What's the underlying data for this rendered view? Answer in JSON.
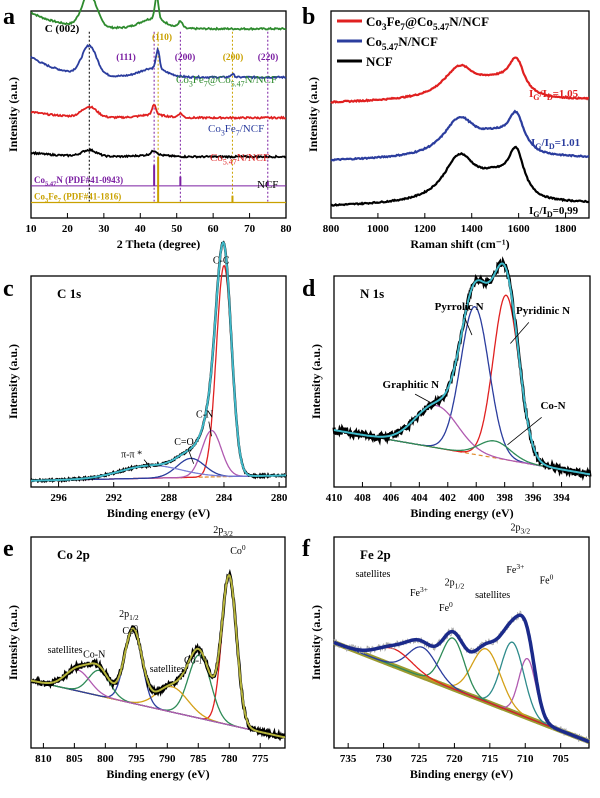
{
  "chart_data": [
    {
      "panel": "a",
      "type": "line",
      "xlabel": "2 Theta (degree)",
      "ylabel": "Intensity (a.u.)",
      "xlim": [
        10,
        80
      ],
      "xticks": [
        10,
        20,
        30,
        40,
        50,
        60,
        70,
        80
      ],
      "peak_labels": [
        {
          "text": "C (002)",
          "x": 26.0,
          "color": "#000000"
        },
        {
          "text": "(111)",
          "x": 43.8,
          "color": "#7b1fa2"
        },
        {
          "text": "(110)",
          "x": 44.9,
          "color": "#c9a100"
        },
        {
          "text": "(200)",
          "x": 51.0,
          "color": "#7b1fa2"
        },
        {
          "text": "(200)",
          "x": 65.3,
          "color": "#c9a100"
        },
        {
          "text": "(220)",
          "x": 75.0,
          "color": "#7b1fa2"
        }
      ],
      "series": [
        {
          "name": "Co3Fe7@Co5.47N/NCF",
          "color": "#2e8b2e",
          "level": 0.93
        },
        {
          "name": "Co3Fe7/NCF",
          "color": "#2b3d9e",
          "level": 0.7
        },
        {
          "name": "Co5.47N/NCF",
          "color": "#e02020",
          "level": 0.49
        },
        {
          "name": "NCF",
          "color": "#000000",
          "level": 0.3
        }
      ],
      "series_labels": [
        {
          "parts": [
            "Co",
            "3",
            "Fe",
            "7",
            "@Co",
            "5.47",
            "N/NCF"
          ],
          "color": "#2e8b2e"
        },
        {
          "parts": [
            "Co",
            "3",
            "Fe",
            "7",
            "/NCF"
          ],
          "color": "#2b3d9e"
        },
        {
          "parts": [
            "Co",
            "5.47",
            "N/NCF"
          ],
          "color": "#e02020"
        },
        {
          "parts": [
            "NCF"
          ],
          "color": "#000000"
        }
      ],
      "references": [
        {
          "label_parts": [
            "Co",
            "5.47",
            "N (PDF#41-0943)"
          ],
          "color": "#7b1fa2",
          "peaks": [
            {
              "x": 43.8,
              "h": 1.0
            },
            {
              "x": 51.0,
              "h": 0.45
            },
            {
              "x": 75.0,
              "h": 0.2
            }
          ]
        },
        {
          "label_parts": [
            "Co",
            "3",
            "Fe",
            "7",
            " (PDF#41-1816)"
          ],
          "color": "#c9a100",
          "peaks": [
            {
              "x": 44.9,
              "h": 1.0
            },
            {
              "x": 65.3,
              "h": 0.15
            }
          ]
        }
      ]
    },
    {
      "panel": "b",
      "type": "line",
      "xlabel": "Raman shift (cm⁻¹)",
      "ylabel": "Intensity (a.u.)",
      "xlim": [
        800,
        1900
      ],
      "xticks": [
        800,
        1000,
        1200,
        1400,
        1600,
        1800
      ],
      "bands": {
        "D": 1350,
        "G": 1590
      },
      "series": [
        {
          "name": "Co3Fe7@Co5.47N/NCF",
          "color": "#e02020",
          "ratio_value": "1.05"
        },
        {
          "name": "Co5.47N/NCF",
          "color": "#2b3d9e",
          "ratio_value": "1.01"
        },
        {
          "name": "NCF",
          "color": "#000000",
          "ratio_value": "0.99"
        }
      ],
      "legend": [
        {
          "parts": [
            "Co",
            "3",
            "Fe",
            "7",
            "@Co",
            "5.47",
            "N/NCF"
          ],
          "color": "#e02020"
        },
        {
          "parts": [
            "Co",
            "5.47",
            "N/NCF"
          ],
          "color": "#2b3d9e"
        },
        {
          "parts": [
            "NCF"
          ],
          "color": "#000000"
        }
      ],
      "legend_position": "top-left",
      "ratio_label": {
        "I": "I",
        "G": "G",
        "slash": "/",
        "D": "D",
        "eq": "="
      }
    },
    {
      "panel": "c",
      "type": "line",
      "title": "C 1s",
      "xlabel": "Binding energy (eV)",
      "ylabel": "Intensity (a.u.)",
      "xlim": [
        298,
        279.5
      ],
      "xticks": [
        296,
        292,
        288,
        284,
        280
      ],
      "components": [
        {
          "label": "C-C",
          "center": 284.0,
          "height": 1.0,
          "width": 0.55,
          "color": "#e02020"
        },
        {
          "label": "C-N",
          "center": 284.9,
          "height": 0.22,
          "width": 0.7,
          "color": "#b05ab0"
        },
        {
          "label": "C=O",
          "center": 286.4,
          "height": 0.09,
          "width": 1.0,
          "color": "#2b3d9e"
        },
        {
          "label": "π-π *",
          "center": 289.3,
          "height": 0.06,
          "width": 2.2,
          "color": "#7a7fd6"
        }
      ]
    },
    {
      "panel": "d",
      "type": "line",
      "title": "N 1s",
      "xlabel": "Binding energy (eV)",
      "ylabel": "Intensity (a.u.)",
      "xlim": [
        410,
        392
      ],
      "xticks": [
        410,
        408,
        406,
        404,
        402,
        400,
        398,
        396,
        394
      ],
      "components": [
        {
          "label": "Pyridinic N",
          "center": 397.9,
          "height": 0.78,
          "width": 0.9,
          "color": "#e02020"
        },
        {
          "label": "Pyrrolic N",
          "center": 400.1,
          "height": 0.7,
          "width": 1.0,
          "color": "#2b3d9e"
        },
        {
          "label": "Graphitic N",
          "center": 402.8,
          "height": 0.2,
          "width": 1.5,
          "color": "#b05ab0"
        },
        {
          "label": "Co-N",
          "center": 398.7,
          "height": 0.08,
          "width": 1.1,
          "color": "#2e8b57"
        }
      ]
    },
    {
      "panel": "e",
      "type": "line",
      "title": "Co 2p",
      "xlabel": "Binding energy (eV)",
      "ylabel": "Intensity (a.u.)",
      "xlim": [
        812,
        771
      ],
      "xticks": [
        810,
        805,
        800,
        795,
        790,
        785,
        780,
        775
      ],
      "components": [
        {
          "label": "Co0",
          "center": 780.0,
          "height": 0.7,
          "width": 1.2,
          "color": "#e02020"
        },
        {
          "label": "Co-N",
          "center": 784.8,
          "height": 0.3,
          "width": 1.8,
          "color": "#2e8b57"
        },
        {
          "label": "satellites",
          "center": 789.2,
          "height": 0.12,
          "width": 2.5,
          "color": "#d4a017"
        },
        {
          "label": "Co0",
          "center": 795.5,
          "height": 0.35,
          "width": 1.4,
          "color": "#2b3d9e"
        },
        {
          "label": "Co-N",
          "center": 801.0,
          "height": 0.12,
          "width": 1.7,
          "color": "#2e8b57"
        },
        {
          "label": "satellites",
          "center": 804.5,
          "height": 0.1,
          "width": 2.0,
          "color": "#b05ab0"
        }
      ],
      "labels": [
        {
          "base": "2p",
          "sub": "3/2",
          "x": 781.0,
          "y": 1.02
        },
        {
          "base": "Co",
          "sup": "0",
          "x": 778.6,
          "y": 0.92
        },
        {
          "base": "2p",
          "sub": "1/2",
          "x": 796.2,
          "y": 0.62
        },
        {
          "base": "Co",
          "sup": "0",
          "x": 796.0,
          "y": 0.54
        },
        {
          "base": "satellites",
          "x": 790.0,
          "y": 0.36
        },
        {
          "base": "Co-N",
          "x": 785.5,
          "y": 0.4
        },
        {
          "base": "Co-N",
          "x": 801.8,
          "y": 0.43
        },
        {
          "base": "satellites",
          "x": 806.5,
          "y": 0.45
        }
      ]
    },
    {
      "panel": "f",
      "type": "line",
      "title": "Fe 2p",
      "xlabel": "Binding energy (eV)",
      "ylabel": "Intensity (a.u.)",
      "xlim": [
        737,
        701
      ],
      "xticks": [
        735,
        730,
        725,
        720,
        715,
        710,
        705
      ],
      "components": [
        {
          "label": "Fe0",
          "center": 709.7,
          "height": 0.28,
          "width": 1.2,
          "color": "#b05ab0"
        },
        {
          "label": "Fe3+",
          "center": 711.8,
          "height": 0.33,
          "width": 1.6,
          "color": "#2e8b8b"
        },
        {
          "label": "satellites",
          "center": 715.5,
          "height": 0.25,
          "width": 2.0,
          "color": "#d4a017"
        },
        {
          "label": "Fe0",
          "center": 720.2,
          "height": 0.24,
          "width": 1.6,
          "color": "#2e8b57"
        },
        {
          "label": "Fe3+",
          "center": 724.5,
          "height": 0.14,
          "width": 2.0,
          "color": "#2b3d9e"
        },
        {
          "label": "satellites",
          "center": 728.5,
          "height": 0.08,
          "width": 2.5,
          "color": "#e02020"
        }
      ],
      "labels": [
        {
          "base": "2p",
          "sub": "3/2",
          "x": 710.7,
          "y": 1.03
        },
        {
          "base": "Fe",
          "sup": "0",
          "x": 707.0,
          "y": 0.78
        },
        {
          "base": "Fe",
          "sup": "3+",
          "x": 711.4,
          "y": 0.83
        },
        {
          "base": "satellites",
          "x": 714.6,
          "y": 0.71
        },
        {
          "base": "2p",
          "sub": "1/2",
          "x": 720.0,
          "y": 0.77
        },
        {
          "base": "Fe",
          "sup": "0",
          "x": 721.2,
          "y": 0.65
        },
        {
          "base": "Fe",
          "sup": "3+",
          "x": 725.0,
          "y": 0.72
        },
        {
          "base": "satellites",
          "x": 731.5,
          "y": 0.81
        }
      ]
    }
  ],
  "panel_letters": [
    "a",
    "b",
    "c",
    "d",
    "e",
    "f"
  ]
}
